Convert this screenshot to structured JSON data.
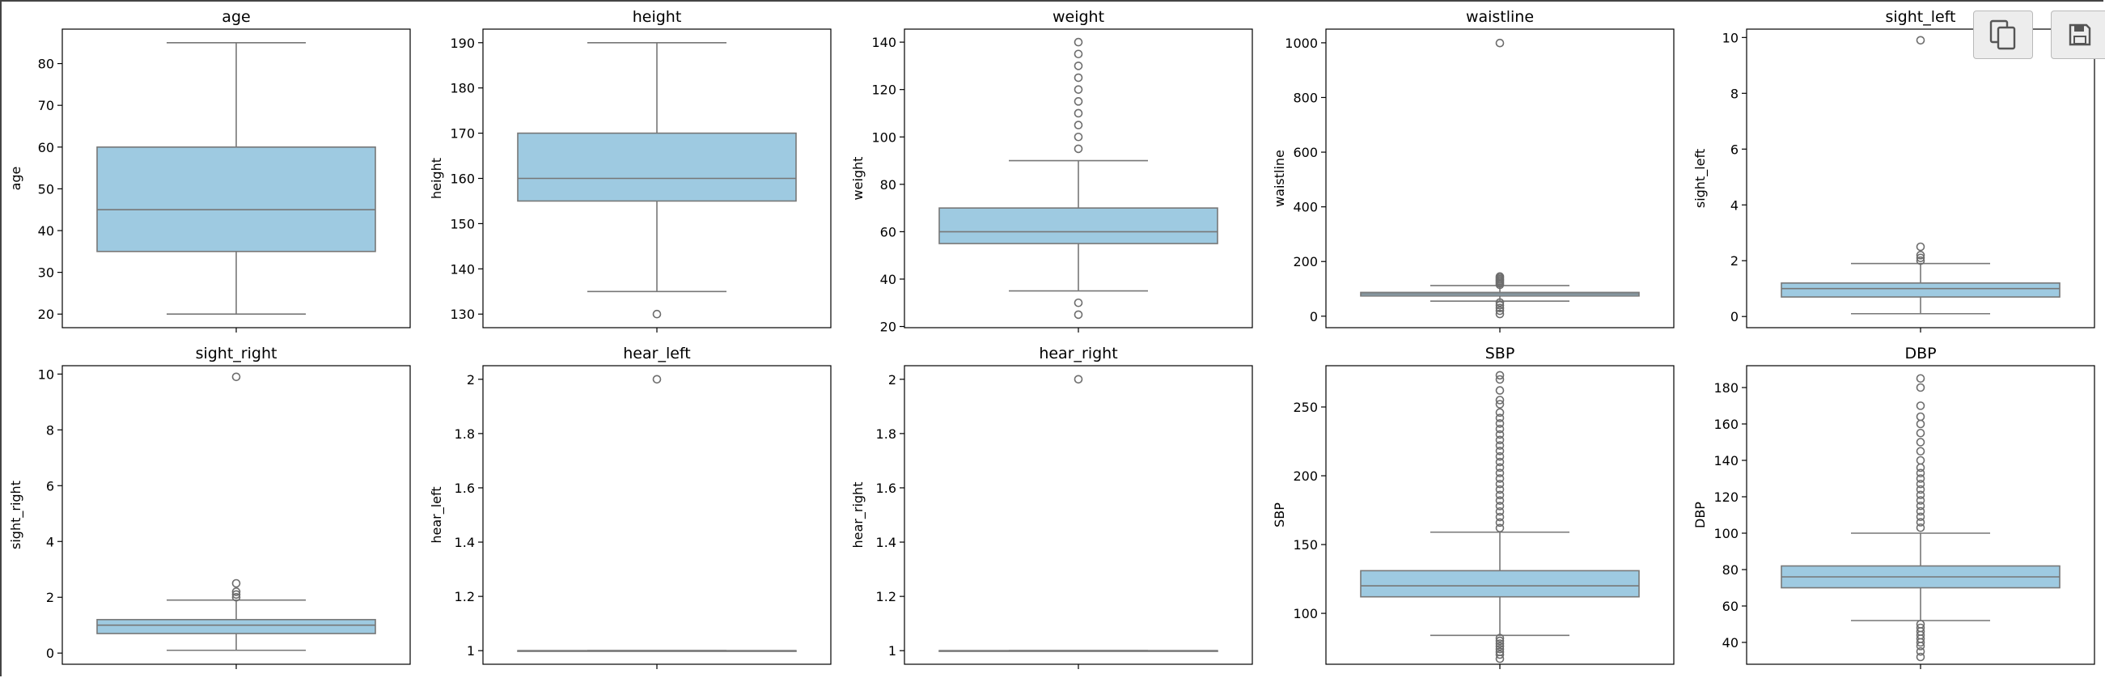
{
  "toolbar": {
    "copy_icon": "copy-icon",
    "save_icon": "floppy-disk-icon"
  },
  "style": {
    "box_fill": "#9ecae1",
    "line_color": "#777777",
    "outlier_color": "#6d6d6d",
    "frame_color": "#000000"
  },
  "chart_data": [
    {
      "type": "box",
      "title": "age",
      "ylabel": "age",
      "ylim": [
        16.75,
        88.25
      ],
      "yticks": [
        20,
        30,
        40,
        50,
        60,
        70,
        80
      ],
      "stats": {
        "q1": 35,
        "median": 45,
        "q3": 60,
        "whisker_low": 20,
        "whisker_high": 85
      },
      "outliers": []
    },
    {
      "type": "box",
      "title": "height",
      "ylabel": "height",
      "ylim": [
        127,
        193
      ],
      "yticks": [
        130,
        140,
        150,
        160,
        170,
        180,
        190
      ],
      "stats": {
        "q1": 155,
        "median": 160,
        "q3": 170,
        "whisker_low": 135,
        "whisker_high": 190
      },
      "outliers": [
        130
      ]
    },
    {
      "type": "box",
      "title": "weight",
      "ylabel": "weight",
      "ylim": [
        19.5,
        145.5
      ],
      "yticks": [
        20,
        40,
        60,
        80,
        100,
        120,
        140
      ],
      "stats": {
        "q1": 55,
        "median": 60,
        "q3": 70,
        "whisker_low": 35,
        "whisker_high": 90
      },
      "outliers": [
        25,
        30,
        95,
        100,
        105,
        110,
        115,
        120,
        125,
        130,
        135,
        140
      ]
    },
    {
      "type": "box",
      "title": "waistline",
      "ylabel": "waistline",
      "ylim": [
        -42,
        1050
      ],
      "yticks": [
        0,
        200,
        400,
        600,
        800,
        1000
      ],
      "stats": {
        "q1": 74,
        "median": 81,
        "q3": 87,
        "whisker_low": 55,
        "whisker_high": 112
      },
      "outliers": [
        8,
        20,
        30,
        40,
        50,
        115,
        120,
        125,
        130,
        135,
        140,
        145,
        999
      ]
    },
    {
      "type": "box",
      "title": "sight_left",
      "ylabel": "sight_left",
      "ylim": [
        -0.4,
        10.3
      ],
      "yticks": [
        0,
        2,
        4,
        6,
        8,
        10
      ],
      "stats": {
        "q1": 0.7,
        "median": 1.0,
        "q3": 1.2,
        "whisker_low": 0.1,
        "whisker_high": 1.9
      },
      "outliers": [
        2.0,
        2.1,
        2.2,
        2.5,
        9.9
      ]
    },
    {
      "type": "box",
      "title": "sight_right",
      "ylabel": "sight_right",
      "ylim": [
        -0.4,
        10.3
      ],
      "yticks": [
        0,
        2,
        4,
        6,
        8,
        10
      ],
      "stats": {
        "q1": 0.7,
        "median": 1.0,
        "q3": 1.2,
        "whisker_low": 0.1,
        "whisker_high": 1.9
      },
      "outliers": [
        2.0,
        2.1,
        2.2,
        2.5,
        9.9
      ]
    },
    {
      "type": "box",
      "title": "hear_left",
      "ylabel": "hear_left",
      "ylim": [
        0.95,
        2.05
      ],
      "yticks": [
        1.0,
        1.2,
        1.4,
        1.6,
        1.8,
        2.0
      ],
      "stats": {
        "q1": 1.0,
        "median": 1.0,
        "q3": 1.0,
        "whisker_low": 1.0,
        "whisker_high": 1.0
      },
      "outliers": [
        2.0
      ]
    },
    {
      "type": "box",
      "title": "hear_right",
      "ylabel": "hear_right",
      "ylim": [
        0.95,
        2.05
      ],
      "yticks": [
        1.0,
        1.2,
        1.4,
        1.6,
        1.8,
        2.0
      ],
      "stats": {
        "q1": 1.0,
        "median": 1.0,
        "q3": 1.0,
        "whisker_low": 1.0,
        "whisker_high": 1.0
      },
      "outliers": [
        2.0
      ]
    },
    {
      "type": "box",
      "title": "SBP",
      "ylabel": "SBP",
      "ylim": [
        63,
        280
      ],
      "yticks": [
        100,
        150,
        200,
        250
      ],
      "stats": {
        "q1": 112,
        "median": 120,
        "q3": 131,
        "whisker_low": 84,
        "whisker_high": 159
      },
      "outliers": [
        67,
        70,
        72,
        74,
        76,
        78,
        80,
        82,
        162,
        166,
        170,
        174,
        178,
        182,
        186,
        190,
        194,
        198,
        202,
        206,
        210,
        214,
        218,
        222,
        226,
        230,
        234,
        238,
        242,
        246,
        252,
        255,
        262,
        270,
        273
      ]
    },
    {
      "type": "box",
      "title": "DBP",
      "ylabel": "DBP",
      "ylim": [
        28,
        192
      ],
      "yticks": [
        40,
        60,
        80,
        100,
        120,
        140,
        160,
        180
      ],
      "stats": {
        "q1": 70,
        "median": 76,
        "q3": 82,
        "whisker_low": 52,
        "whisker_high": 100
      },
      "outliers": [
        32,
        35,
        38,
        40,
        42,
        44,
        46,
        48,
        50,
        103,
        106,
        109,
        112,
        115,
        118,
        121,
        124,
        127,
        130,
        133,
        136,
        140,
        145,
        150,
        155,
        160,
        164,
        170,
        180,
        185
      ]
    }
  ]
}
